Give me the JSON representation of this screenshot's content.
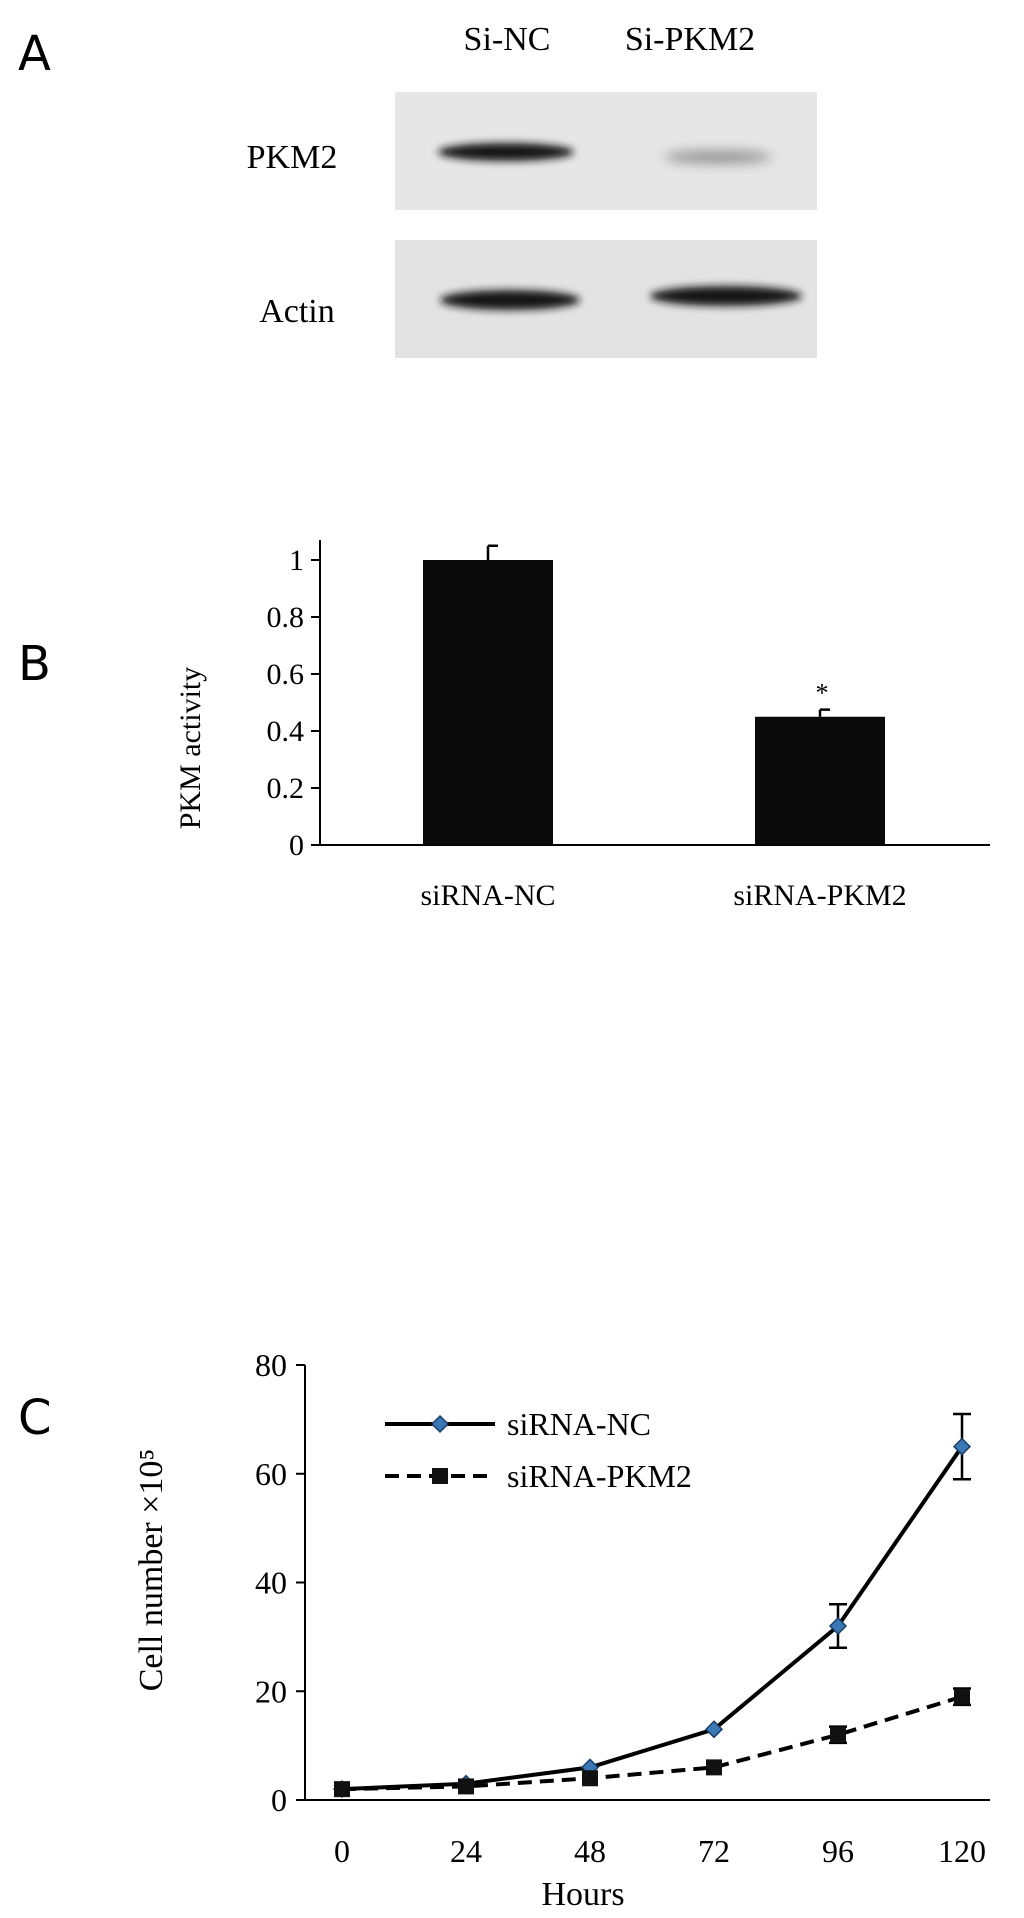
{
  "panels": {
    "a": "A",
    "b": "B",
    "c": "C"
  },
  "blot": {
    "lane_labels": [
      "Si-NC",
      "Si-PKM2"
    ],
    "row_labels": [
      "PKM2",
      "Actin"
    ]
  },
  "chart_data": [
    {
      "type": "bar",
      "categories": [
        "siRNA-NC",
        "siRNA-PKM2"
      ],
      "values": [
        1.0,
        0.45
      ],
      "errors": [
        0.05,
        0.025
      ],
      "annotations": [
        "",
        "*"
      ],
      "title": "",
      "xlabel": "",
      "ylabel": "PKM activity",
      "ylim": [
        0,
        1
      ],
      "yticks": [
        "0",
        "0.2",
        "0.4",
        "0.6",
        "0.8",
        "1"
      ],
      "grid": false,
      "bar_color": "#0a0a0a"
    },
    {
      "type": "line",
      "x": [
        0,
        24,
        48,
        72,
        96,
        120
      ],
      "xticks": [
        "0",
        "24",
        "48",
        "72",
        "96",
        "120"
      ],
      "series": [
        {
          "name": "siRNA-NC",
          "values": [
            2,
            3,
            6,
            13,
            32,
            65
          ],
          "errors": [
            0.5,
            0.5,
            0.8,
            1.0,
            4,
            6
          ],
          "style": "solid",
          "marker": "diamond",
          "marker_color": "#3a78b5"
        },
        {
          "name": "siRNA-PKM2",
          "values": [
            2,
            2.5,
            4,
            6,
            12,
            19
          ],
          "errors": [
            0.5,
            0.5,
            0.8,
            0.8,
            1.5,
            1.5
          ],
          "style": "dashed",
          "marker": "square",
          "marker_color": "#111111"
        }
      ],
      "title": "",
      "xlabel": "Hours",
      "ylabel": "Cell number ×10⁵",
      "ylim": [
        0,
        80
      ],
      "yticks": [
        "0",
        "20",
        "40",
        "60",
        "80"
      ],
      "grid": false,
      "legend": "top-left"
    }
  ]
}
